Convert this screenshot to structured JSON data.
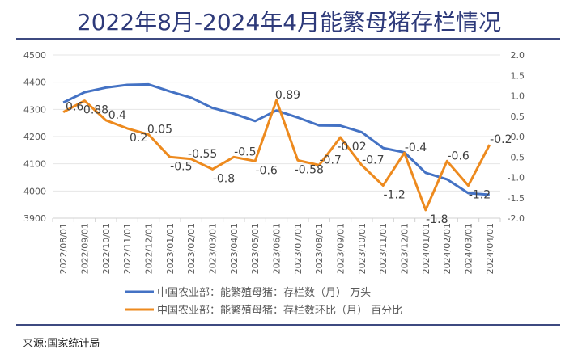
{
  "title": "2022年8月-2024年4月能繁母猪存栏情况",
  "source": "来源:国家统计局",
  "chart_data": {
    "type": "line",
    "title": "2022年8月-2024年4月能繁母猪存栏情况",
    "categories": [
      "2022/08/01",
      "2022/09/01",
      "2022/10/01",
      "2022/11/01",
      "2022/12/01",
      "2023/01/01",
      "2023/02/01",
      "2023/03/01",
      "2023/04/01",
      "2023/05/01",
      "2023/06/01",
      "2023/07/01",
      "2023/08/01",
      "2023/09/01",
      "2023/10/01",
      "2023/11/01",
      "2023/12/01",
      "2024/01/01",
      "2024/02/01",
      "2024/03/01",
      "2024/04/01"
    ],
    "left_axis": {
      "ylim": [
        3900,
        4500
      ],
      "ticks": [
        "3900",
        "4000",
        "4100",
        "4200",
        "4300",
        "4400",
        "4500"
      ]
    },
    "right_axis": {
      "ylim": [
        -2.0,
        2.0
      ],
      "ticks": [
        "-2.0",
        "-1.5",
        "-1.0",
        "-0.5",
        "0.0",
        "0.5",
        "1.0",
        "1.5",
        "2.0"
      ]
    },
    "grid": true,
    "legend_position": "bottom",
    "series": [
      {
        "name": "中国农业部：能繁殖母猪：存栏数（月） 万头",
        "axis": "left",
        "color": "#4472c4",
        "values": [
          4325,
          4363,
          4380,
          4390,
          4392,
          4366,
          4343,
          4305,
          4284,
          4257,
          4296,
          4270,
          4241,
          4240,
          4216,
          4158,
          4142,
          4067,
          4043,
          3992,
          3986
        ]
      },
      {
        "name": "中国农业部：能繁殖母猪：存栏数环比（月） 百分比",
        "axis": "right",
        "color": "#ed8a1e",
        "values": [
          0.6,
          0.88,
          0.4,
          0.2,
          0.05,
          -0.5,
          -0.55,
          -0.8,
          -0.5,
          -0.6,
          0.89,
          -0.58,
          -0.7,
          -0.02,
          -0.7,
          -1.2,
          -0.4,
          -1.8,
          -0.6,
          -1.2,
          -0.2
        ],
        "data_labels": [
          "0.6",
          "0.88",
          "0.4",
          "0.2",
          "0.05",
          "-0.5",
          "-0.55",
          "-0.8",
          "-0.5",
          "-0.6",
          "0.89",
          "-0.58",
          "-0.7",
          "-0.02",
          "-0.7",
          "-1.2",
          "-0.4",
          "-1.8",
          "-0.6",
          "-1.2",
          "-0.2"
        ]
      }
    ]
  }
}
